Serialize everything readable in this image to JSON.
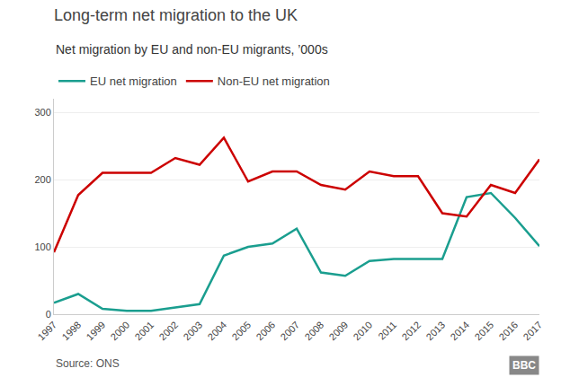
{
  "chart_data": {
    "type": "line",
    "title": "Long-term net migration to the UK",
    "subtitle": "Net migration by EU and non-EU migrants, ’000s",
    "annotations": [
      "Source: ONS",
      "BBC"
    ],
    "x": [
      1997,
      1998,
      1999,
      2000,
      2001,
      2002,
      2003,
      2004,
      2005,
      2006,
      2007,
      2008,
      2009,
      2010,
      2011,
      2012,
      2013,
      2014,
      2015,
      2016,
      2017
    ],
    "series": [
      {
        "name": "EU net migration",
        "color": "#1a9e8f",
        "values": [
          17,
          30,
          8,
          5,
          5,
          10,
          15,
          87,
          100,
          105,
          127,
          62,
          57,
          79,
          82,
          82,
          82,
          174,
          180,
          143,
          101
        ]
      },
      {
        "name": "Non-EU net migration",
        "color": "#cc0000",
        "values": [
          92,
          177,
          210,
          210,
          210,
          232,
          222,
          262,
          197,
          212,
          212,
          192,
          185,
          212,
          205,
          205,
          150,
          145,
          192,
          180,
          230
        ]
      }
    ],
    "xlim": [
      1997,
      2017
    ],
    "xticks": [
      1997,
      1998,
      1999,
      2000,
      2001,
      2002,
      2003,
      2004,
      2005,
      2006,
      2007,
      2008,
      2009,
      2010,
      2011,
      2012,
      2013,
      2014,
      2015,
      2016,
      2017
    ],
    "ylim": [
      0,
      320
    ],
    "yticks": [
      0,
      100,
      200,
      300
    ],
    "grid": true,
    "legend": "upper left"
  }
}
